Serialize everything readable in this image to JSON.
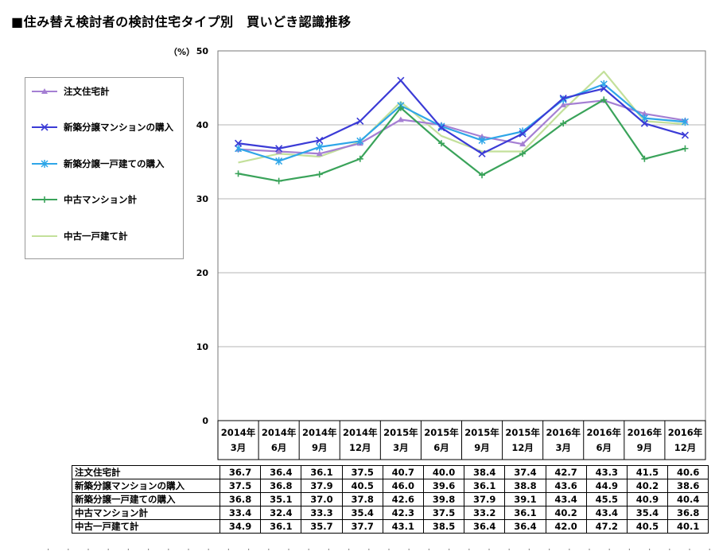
{
  "title": "■住み替え検討者の検討住宅タイプ別　買いどき認識推移",
  "chart_data": {
    "type": "line",
    "y_unit_label": "（%）",
    "ylim": [
      0,
      50
    ],
    "y_ticks": [
      "0",
      "10",
      "20",
      "30",
      "40",
      "50"
    ],
    "grid": true,
    "legend_position": "left",
    "categories": [
      [
        "2014年",
        "3月"
      ],
      [
        "2014年",
        "6月"
      ],
      [
        "2014年",
        "9月"
      ],
      [
        "2014年",
        "12月"
      ],
      [
        "2015年",
        "3月"
      ],
      [
        "2015年",
        "6月"
      ],
      [
        "2015年",
        "9月"
      ],
      [
        "2015年",
        "12月"
      ],
      [
        "2016年",
        "3月"
      ],
      [
        "2016年",
        "6月"
      ],
      [
        "2016年",
        "9月"
      ],
      [
        "2016年",
        "12月"
      ]
    ],
    "series": [
      {
        "name": "注文住宅計",
        "color": "#a57fd3",
        "marker": "triangle",
        "values": [
          36.7,
          36.4,
          36.1,
          37.5,
          40.7,
          40.0,
          38.4,
          37.4,
          42.7,
          43.3,
          41.5,
          40.6
        ],
        "labels": [
          "36.7",
          "36.4",
          "36.1",
          "37.5",
          "40.7",
          "40.0",
          "38.4",
          "37.4",
          "42.7",
          "43.3",
          "41.5",
          "40.6"
        ]
      },
      {
        "name": "新築分譲マンションの購入",
        "color": "#3b3bd6",
        "marker": "x",
        "values": [
          37.5,
          36.8,
          37.9,
          40.5,
          46.0,
          39.6,
          36.1,
          38.8,
          43.6,
          44.9,
          40.2,
          38.6
        ],
        "labels": [
          "37.5",
          "36.8",
          "37.9",
          "40.5",
          "46.0",
          "39.6",
          "36.1",
          "38.8",
          "43.6",
          "44.9",
          "40.2",
          "38.6"
        ]
      },
      {
        "name": "新築分譲一戸建ての購入",
        "color": "#2ea6e8",
        "marker": "asterisk",
        "values": [
          36.8,
          35.1,
          37.0,
          37.8,
          42.6,
          39.8,
          37.9,
          39.1,
          43.4,
          45.5,
          40.9,
          40.4
        ],
        "labels": [
          "36.8",
          "35.1",
          "37.0",
          "37.8",
          "42.6",
          "39.8",
          "37.9",
          "39.1",
          "43.4",
          "45.5",
          "40.9",
          "40.4"
        ]
      },
      {
        "name": "中古マンション計",
        "color": "#3aa35a",
        "marker": "plus",
        "values": [
          33.4,
          32.4,
          33.3,
          35.4,
          42.3,
          37.5,
          33.2,
          36.1,
          40.2,
          43.4,
          35.4,
          36.8
        ],
        "labels": [
          "33.4",
          "32.4",
          "33.3",
          "35.4",
          "42.3",
          "37.5",
          "33.2",
          "36.1",
          "40.2",
          "43.4",
          "35.4",
          "36.8"
        ]
      },
      {
        "name": "中古一戸建て計",
        "color": "#c3e09a",
        "marker": "none",
        "values": [
          34.9,
          36.1,
          35.7,
          37.7,
          43.1,
          38.5,
          36.4,
          36.4,
          42.0,
          47.2,
          40.5,
          40.1
        ],
        "labels": [
          "34.9",
          "36.1",
          "35.7",
          "37.7",
          "43.1",
          "38.5",
          "36.4",
          "36.4",
          "42.0",
          "47.2",
          "40.5",
          "40.1"
        ]
      }
    ]
  }
}
